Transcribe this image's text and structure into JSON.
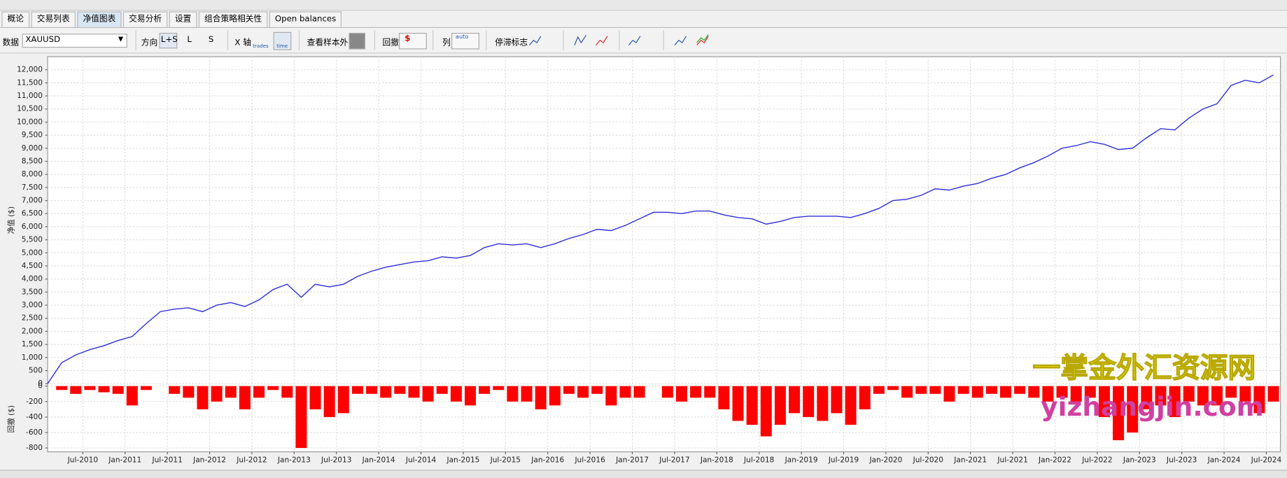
{
  "tabs": [
    "概论",
    "交易列表",
    "净值图表",
    "交易分析",
    "设置",
    "组合策略相关性",
    "Open balances"
  ],
  "toolbar": {
    "data_label": "数据",
    "symbol": "XAUUSD",
    "direction_label": "方向",
    "directions": [
      "L+S",
      "L",
      "S"
    ],
    "xaxis_label": "X 轴",
    "xaxis_options": [
      "trades",
      "time"
    ],
    "oos_label": "查看样本外",
    "drawdown_label": "回撤",
    "columns_label": "列",
    "columns_option": "auto",
    "stagnation_label": "停滞标志"
  },
  "watermark": [
    "一掌金外汇资源网",
    "yizhangjin.com"
  ],
  "chart_data": [
    {
      "type": "line",
      "y_label": "净值 ($)",
      "color": "#3030d8",
      "grid": true,
      "x": [
        "2010-02",
        "2010-04",
        "2010-06",
        "2010-08",
        "2010-10",
        "2010-12",
        "2011-02",
        "2011-04",
        "2011-06",
        "2011-08",
        "2011-10",
        "2011-12",
        "2012-02",
        "2012-04",
        "2012-06",
        "2012-08",
        "2012-10",
        "2012-12",
        "2013-02",
        "2013-04",
        "2013-06",
        "2013-08",
        "2013-10",
        "2013-12",
        "2014-02",
        "2014-04",
        "2014-06",
        "2014-08",
        "2014-10",
        "2014-12",
        "2015-02",
        "2015-04",
        "2015-06",
        "2015-08",
        "2015-10",
        "2015-12",
        "2016-02",
        "2016-04",
        "2016-06",
        "2016-08",
        "2016-10",
        "2016-12",
        "2017-02",
        "2017-04",
        "2017-06",
        "2017-08",
        "2017-10",
        "2017-12",
        "2018-02",
        "2018-04",
        "2018-06",
        "2018-08",
        "2018-10",
        "2018-12",
        "2019-02",
        "2019-04",
        "2019-06",
        "2019-08",
        "2019-10",
        "2019-12",
        "2020-02",
        "2020-04",
        "2020-06",
        "2020-08",
        "2020-10",
        "2020-12",
        "2021-02",
        "2021-04",
        "2021-06",
        "2021-08",
        "2021-10",
        "2021-12",
        "2022-02",
        "2022-04",
        "2022-06",
        "2022-08",
        "2022-10",
        "2022-12",
        "2023-02",
        "2023-04",
        "2023-06",
        "2023-08",
        "2023-10",
        "2023-12",
        "2024-02",
        "2024-04",
        "2024-06",
        "2024-08"
      ],
      "values": [
        0,
        800,
        1100,
        1300,
        1450,
        1650,
        1800,
        2300,
        2750,
        2850,
        2900,
        2750,
        3000,
        3100,
        2950,
        3200,
        3600,
        3800,
        3300,
        3800,
        3700,
        3800,
        4100,
        4300,
        4450,
        4550,
        4650,
        4700,
        4850,
        4800,
        4900,
        5200,
        5350,
        5300,
        5350,
        5200,
        5350,
        5550,
        5700,
        5900,
        5850,
        6050,
        6300,
        6550,
        6550,
        6500,
        6600,
        6600,
        6450,
        6350,
        6300,
        6100,
        6200,
        6350,
        6400,
        6400,
        6400,
        6350,
        6500,
        6700,
        7000,
        7050,
        7200,
        7450,
        7400,
        7550,
        7650,
        7850,
        8000,
        8250,
        8450,
        8700,
        9000,
        9100,
        9250,
        9150,
        8950,
        9000,
        9400,
        9750,
        9700,
        10150,
        10500,
        10700,
        11400,
        11600,
        11500,
        11800
      ],
      "xlim": [
        "2010-02",
        "2024-09"
      ],
      "ylim": [
        0,
        12500
      ],
      "yticks": [
        0,
        500,
        {
          "value": 1000,
          "label": "1,000"
        },
        {
          "value": 1500,
          "label": "1,500"
        },
        {
          "value": 2000,
          "label": "2,000"
        },
        {
          "value": 2500,
          "label": "2,500"
        },
        {
          "value": 3000,
          "label": "3,000"
        },
        {
          "value": 3500,
          "label": "3,500"
        },
        {
          "value": 4000,
          "label": "4,000"
        },
        {
          "value": 4500,
          "label": "4,500"
        },
        {
          "value": 5000,
          "label": "5,000"
        },
        {
          "value": 5500,
          "label": "5,500"
        },
        {
          "value": 6000,
          "label": "6,000"
        },
        {
          "value": 6500,
          "label": "6,500"
        },
        {
          "value": 7000,
          "label": "7,000"
        },
        {
          "value": 7500,
          "label": "7,500"
        },
        {
          "value": 8000,
          "label": "8,000"
        },
        {
          "value": 8500,
          "label": "8,500"
        },
        {
          "value": 9000,
          "label": "9,000"
        },
        {
          "value": 9500,
          "label": "9,500"
        },
        {
          "value": 10000,
          "label": "10,000"
        },
        {
          "value": 10500,
          "label": "10,500"
        },
        {
          "value": 11000,
          "label": "11,000"
        },
        {
          "value": 11500,
          "label": "11,500"
        },
        {
          "value": 12000,
          "label": "12,000"
        }
      ],
      "xticks": [
        {
          "value": "2010-07",
          "label": "Jul-2010"
        },
        {
          "value": "2011-01",
          "label": "Jan-2011"
        },
        {
          "value": "2011-07",
          "label": "Jul-2011"
        },
        {
          "value": "2012-01",
          "label": "Jan-2012"
        },
        {
          "value": "2012-07",
          "label": "Jul-2012"
        },
        {
          "value": "2013-01",
          "label": "Jan-2013"
        },
        {
          "value": "2013-07",
          "label": "Jul-2013"
        },
        {
          "value": "2014-01",
          "label": "Jan-2014"
        },
        {
          "value": "2014-07",
          "label": "Jul-2014"
        },
        {
          "value": "2015-01",
          "label": "Jan-2015"
        },
        {
          "value": "2015-07",
          "label": "Jul-2015"
        },
        {
          "value": "2016-01",
          "label": "Jan-2016"
        },
        {
          "value": "2016-07",
          "label": "Jul-2016"
        },
        {
          "value": "2017-01",
          "label": "Jan-2017"
        },
        {
          "value": "2017-07",
          "label": "Jul-2017"
        },
        {
          "value": "2018-01",
          "label": "Jan-2018"
        },
        {
          "value": "2018-07",
          "label": "Jul-2018"
        },
        {
          "value": "2019-01",
          "label": "Jan-2019"
        },
        {
          "value": "2019-07",
          "label": "Jul-2019"
        },
        {
          "value": "2020-01",
          "label": "Jan-2020"
        },
        {
          "value": "2020-07",
          "label": "Jul-2020"
        },
        {
          "value": "2021-01",
          "label": "Jan-2021"
        },
        {
          "value": "2021-07",
          "label": "Jul-2021"
        },
        {
          "value": "2022-01",
          "label": "Jan-2022"
        },
        {
          "value": "2022-07",
          "label": "Jul-2022"
        },
        {
          "value": "2023-01",
          "label": "Jan-2023"
        },
        {
          "value": "2023-07",
          "label": "Jul-2023"
        },
        {
          "value": "2024-01",
          "label": "Jan-2024"
        },
        {
          "value": "2024-07",
          "label": "Jul-2024"
        }
      ]
    },
    {
      "type": "bar",
      "y_label": "回撤 ($)",
      "color": "#ff0000",
      "grid": true,
      "x": [
        "2010-02",
        "2010-04",
        "2010-06",
        "2010-08",
        "2010-10",
        "2010-12",
        "2011-02",
        "2011-04",
        "2011-06",
        "2011-08",
        "2011-10",
        "2011-12",
        "2012-02",
        "2012-04",
        "2012-06",
        "2012-08",
        "2012-10",
        "2012-12",
        "2013-02",
        "2013-04",
        "2013-06",
        "2013-08",
        "2013-10",
        "2013-12",
        "2014-02",
        "2014-04",
        "2014-06",
        "2014-08",
        "2014-10",
        "2014-12",
        "2015-02",
        "2015-04",
        "2015-06",
        "2015-08",
        "2015-10",
        "2015-12",
        "2016-02",
        "2016-04",
        "2016-06",
        "2016-08",
        "2016-10",
        "2016-12",
        "2017-02",
        "2017-04",
        "2017-06",
        "2017-08",
        "2017-10",
        "2017-12",
        "2018-02",
        "2018-04",
        "2018-06",
        "2018-08",
        "2018-10",
        "2018-12",
        "2019-02",
        "2019-04",
        "2019-06",
        "2019-08",
        "2019-10",
        "2019-12",
        "2020-02",
        "2020-04",
        "2020-06",
        "2020-08",
        "2020-10",
        "2020-12",
        "2021-02",
        "2021-04",
        "2021-06",
        "2021-08",
        "2021-10",
        "2021-12",
        "2022-02",
        "2022-04",
        "2022-06",
        "2022-08",
        "2022-10",
        "2022-12",
        "2023-02",
        "2023-04",
        "2023-06",
        "2023-08",
        "2023-10",
        "2023-12",
        "2024-02",
        "2024-04",
        "2024-06",
        "2024-08"
      ],
      "values": [
        0,
        -50,
        -100,
        -50,
        -80,
        -100,
        -250,
        -50,
        0,
        -100,
        -150,
        -300,
        -200,
        -150,
        -300,
        -150,
        -50,
        -150,
        -800,
        -300,
        -400,
        -350,
        -100,
        -100,
        -150,
        -100,
        -150,
        -200,
        -100,
        -200,
        -250,
        -100,
        -50,
        -200,
        -200,
        -300,
        -250,
        -100,
        -150,
        -100,
        -250,
        -150,
        -150,
        0,
        -150,
        -200,
        -150,
        -150,
        -300,
        -450,
        -500,
        -650,
        -500,
        -350,
        -400,
        -450,
        -350,
        -500,
        -300,
        -100,
        -50,
        -150,
        -100,
        -100,
        -200,
        -100,
        -150,
        -100,
        -150,
        -100,
        -150,
        -200,
        -150,
        -200,
        -150,
        -400,
        -700,
        -600,
        -300,
        -250,
        -400,
        -200,
        -250,
        -250,
        -150,
        -200,
        -350,
        -200
      ],
      "xlim": [
        "2010-02",
        "2024-09"
      ],
      "ylim": [
        -850,
        0
      ],
      "yticks": [
        0,
        -200,
        -400,
        -600,
        -800
      ]
    }
  ]
}
